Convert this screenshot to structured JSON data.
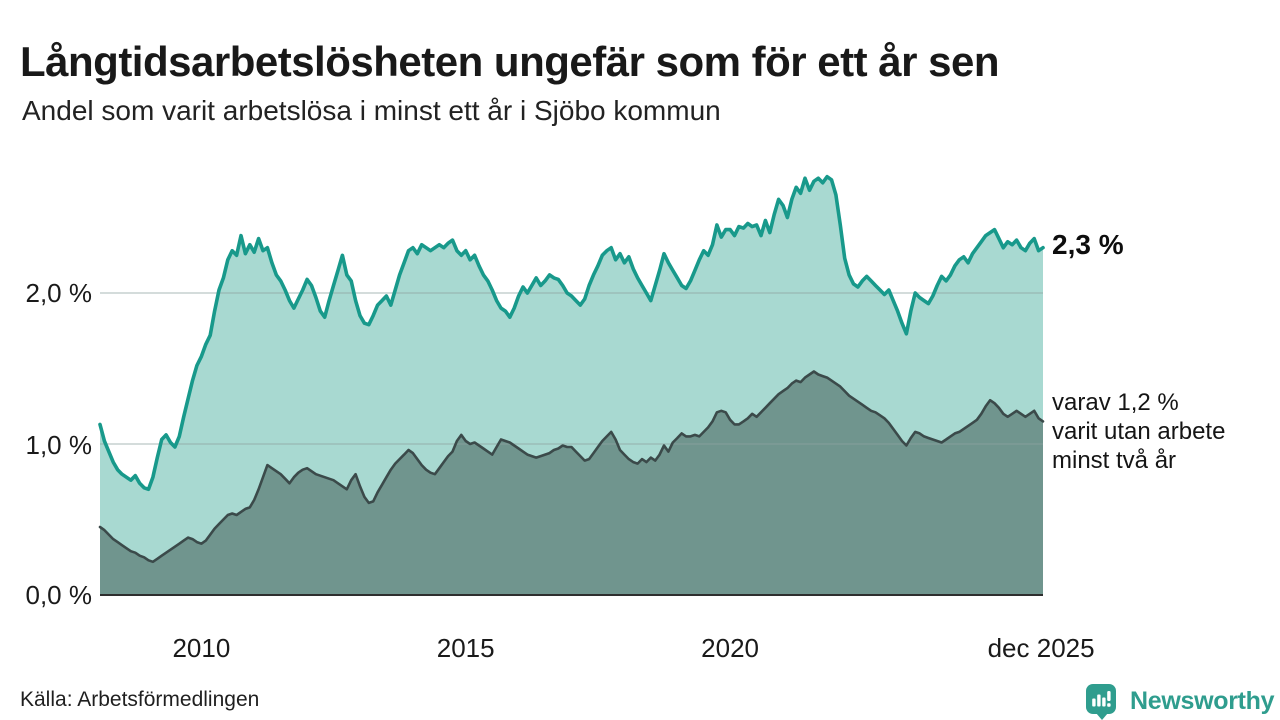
{
  "chart_data": {
    "type": "area",
    "title": "Långtidsarbetslösheten ungefär som för ett år sen",
    "subtitle": "Andel som varit arbetslösa i minst ett år i Sjöbo kommun",
    "source": "Källa: Arbetsförmedlingen",
    "grid": "horizontal",
    "legend_position": "none",
    "x_start": 2008.0833,
    "x_step_years": 0.0833333,
    "x_domain": [
      2008.0833,
      2025.9167
    ],
    "y_domain": [
      0,
      2.9
    ],
    "yticks": [
      {
        "value": 2.0,
        "label": "2,0 %"
      },
      {
        "value": 1.0,
        "label": "1,0 %"
      },
      {
        "value": 0.0,
        "label": "0,0 %"
      }
    ],
    "xticks": [
      {
        "x": 2010.0,
        "label": "2010"
      },
      {
        "x": 2015.0,
        "label": "2015"
      },
      {
        "x": 2020.0,
        "label": "2020"
      },
      {
        "x": 2025.88,
        "label": "dec 2025"
      }
    ],
    "series": [
      {
        "id": "arbetslosa-minst-ett-ar",
        "line_color": "#18998b",
        "fill_color": "#a8d9d1",
        "end_label": "2,3 %",
        "values": [
          1.13,
          1.02,
          0.95,
          0.88,
          0.83,
          0.8,
          0.78,
          0.76,
          0.79,
          0.74,
          0.71,
          0.7,
          0.78,
          0.91,
          1.03,
          1.06,
          1.01,
          0.98,
          1.05,
          1.18,
          1.3,
          1.42,
          1.52,
          1.58,
          1.66,
          1.72,
          1.88,
          2.02,
          2.1,
          2.22,
          2.28,
          2.25,
          2.38,
          2.26,
          2.32,
          2.27,
          2.36,
          2.28,
          2.3,
          2.2,
          2.12,
          2.08,
          2.02,
          1.95,
          1.9,
          1.96,
          2.02,
          2.09,
          2.05,
          1.97,
          1.88,
          1.84,
          1.95,
          2.05,
          2.15,
          2.25,
          2.12,
          2.08,
          1.95,
          1.85,
          1.8,
          1.79,
          1.85,
          1.92,
          1.95,
          1.98,
          1.92,
          2.02,
          2.12,
          2.2,
          2.28,
          2.3,
          2.26,
          2.32,
          2.3,
          2.28,
          2.3,
          2.32,
          2.3,
          2.33,
          2.35,
          2.28,
          2.25,
          2.28,
          2.22,
          2.25,
          2.18,
          2.12,
          2.08,
          2.02,
          1.95,
          1.9,
          1.88,
          1.84,
          1.9,
          1.98,
          2.04,
          2.0,
          2.05,
          2.1,
          2.05,
          2.08,
          2.12,
          2.1,
          2.09,
          2.05,
          2.0,
          1.98,
          1.95,
          1.92,
          1.96,
          2.05,
          2.12,
          2.18,
          2.25,
          2.28,
          2.3,
          2.22,
          2.26,
          2.2,
          2.24,
          2.16,
          2.1,
          2.05,
          2.0,
          1.95,
          2.05,
          2.15,
          2.26,
          2.2,
          2.15,
          2.1,
          2.05,
          2.03,
          2.08,
          2.15,
          2.22,
          2.28,
          2.25,
          2.32,
          2.45,
          2.37,
          2.42,
          2.42,
          2.38,
          2.44,
          2.43,
          2.46,
          2.44,
          2.45,
          2.38,
          2.48,
          2.4,
          2.52,
          2.62,
          2.58,
          2.5,
          2.62,
          2.7,
          2.66,
          2.76,
          2.68,
          2.74,
          2.76,
          2.73,
          2.77,
          2.75,
          2.65,
          2.45,
          2.23,
          2.12,
          2.06,
          2.04,
          2.08,
          2.11,
          2.08,
          2.05,
          2.02,
          1.99,
          2.02,
          1.95,
          1.88,
          1.8,
          1.73,
          1.88,
          2.0,
          1.97,
          1.95,
          1.93,
          1.98,
          2.05,
          2.11,
          2.08,
          2.12,
          2.18,
          2.22,
          2.24,
          2.2,
          2.26,
          2.3,
          2.34,
          2.38,
          2.4,
          2.42,
          2.36,
          2.3,
          2.34,
          2.32,
          2.35,
          2.3,
          2.28,
          2.33,
          2.36,
          2.28,
          2.3
        ]
      },
      {
        "id": "arbetslosa-minst-tva-ar",
        "line_color": "#3b4a4a",
        "fill_color": "#70958e",
        "end_label_lines": [
          "varav 1,2 %",
          "varit utan arbete",
          "minst två år"
        ],
        "values": [
          0.45,
          0.43,
          0.4,
          0.37,
          0.35,
          0.33,
          0.31,
          0.29,
          0.28,
          0.26,
          0.25,
          0.23,
          0.22,
          0.24,
          0.26,
          0.28,
          0.3,
          0.32,
          0.34,
          0.36,
          0.38,
          0.37,
          0.35,
          0.34,
          0.36,
          0.4,
          0.44,
          0.47,
          0.5,
          0.53,
          0.54,
          0.53,
          0.55,
          0.57,
          0.58,
          0.63,
          0.7,
          0.78,
          0.86,
          0.84,
          0.82,
          0.8,
          0.77,
          0.74,
          0.78,
          0.81,
          0.83,
          0.84,
          0.82,
          0.8,
          0.79,
          0.78,
          0.77,
          0.76,
          0.74,
          0.72,
          0.7,
          0.76,
          0.8,
          0.72,
          0.65,
          0.61,
          0.62,
          0.68,
          0.73,
          0.78,
          0.83,
          0.87,
          0.9,
          0.93,
          0.96,
          0.94,
          0.9,
          0.86,
          0.83,
          0.81,
          0.8,
          0.84,
          0.88,
          0.92,
          0.95,
          1.02,
          1.06,
          1.02,
          1.0,
          1.01,
          0.99,
          0.97,
          0.95,
          0.93,
          0.98,
          1.03,
          1.02,
          1.01,
          0.99,
          0.97,
          0.95,
          0.93,
          0.92,
          0.91,
          0.92,
          0.93,
          0.94,
          0.96,
          0.97,
          0.99,
          0.98,
          0.98,
          0.95,
          0.92,
          0.89,
          0.9,
          0.94,
          0.98,
          1.02,
          1.05,
          1.08,
          1.03,
          0.96,
          0.93,
          0.9,
          0.88,
          0.87,
          0.9,
          0.88,
          0.91,
          0.89,
          0.93,
          0.99,
          0.95,
          1.01,
          1.04,
          1.07,
          1.05,
          1.05,
          1.06,
          1.05,
          1.08,
          1.11,
          1.15,
          1.21,
          1.22,
          1.21,
          1.16,
          1.13,
          1.13,
          1.15,
          1.17,
          1.2,
          1.18,
          1.21,
          1.24,
          1.27,
          1.3,
          1.33,
          1.35,
          1.37,
          1.4,
          1.42,
          1.41,
          1.44,
          1.46,
          1.48,
          1.46,
          1.45,
          1.44,
          1.42,
          1.4,
          1.38,
          1.35,
          1.32,
          1.3,
          1.28,
          1.26,
          1.24,
          1.22,
          1.21,
          1.19,
          1.17,
          1.14,
          1.1,
          1.06,
          1.02,
          0.99,
          1.04,
          1.08,
          1.07,
          1.05,
          1.04,
          1.03,
          1.02,
          1.01,
          1.03,
          1.05,
          1.07,
          1.08,
          1.1,
          1.12,
          1.14,
          1.16,
          1.2,
          1.25,
          1.29,
          1.27,
          1.24,
          1.2,
          1.18,
          1.2,
          1.22,
          1.2,
          1.18,
          1.2,
          1.22,
          1.17,
          1.15
        ]
      }
    ]
  },
  "footer": {
    "brand": "Newsworthy"
  },
  "colors": {
    "brand_teal": "#2f9d8e",
    "series1_line": "#18998b",
    "series1_fill": "#a8d9d1",
    "series2_line": "#3b4a4a",
    "series2_fill": "#70958e",
    "gridline": "#dddddd",
    "baseline": "#2e2e2e",
    "text": "#1a1a1a"
  }
}
